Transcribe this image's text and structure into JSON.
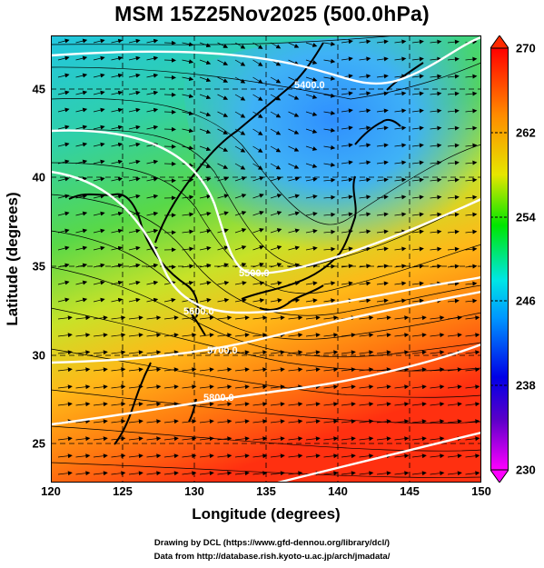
{
  "title": "MSM 15Z25Nov2025 (500.0hPa)",
  "map": {
    "xlabel": "Longitude (degrees)",
    "ylabel": "Latitude  (degrees)",
    "lon_ticks": [
      "120",
      "125",
      "130",
      "135",
      "140",
      "145",
      "150"
    ],
    "lat_ticks": [
      "45",
      "40",
      "35",
      "30",
      "25"
    ],
    "lon_range": [
      120,
      150
    ],
    "lat_range": [
      22.4,
      47.6
    ],
    "contour_labels": [
      "5400.0",
      "5500.0",
      "5600.0",
      "5700.0",
      "5800.0"
    ]
  },
  "colorbar": {
    "ticks": [
      "270",
      "262",
      "254",
      "246",
      "238",
      "230"
    ],
    "range": [
      230,
      270
    ],
    "colors": [
      "#ff00ff",
      "#5a00c8",
      "#0000e6",
      "#0096ff",
      "#00e6e6",
      "#00e600",
      "#e6e600",
      "#ff8c00",
      "#ff0000"
    ]
  },
  "footer": {
    "line1": "Drawing by DCL (https://www.gfd-dennou.org/library/dcl/)",
    "line2": "Data from http://database.rish.kyoto-u.ac.jp/arch/jmadata/"
  }
}
